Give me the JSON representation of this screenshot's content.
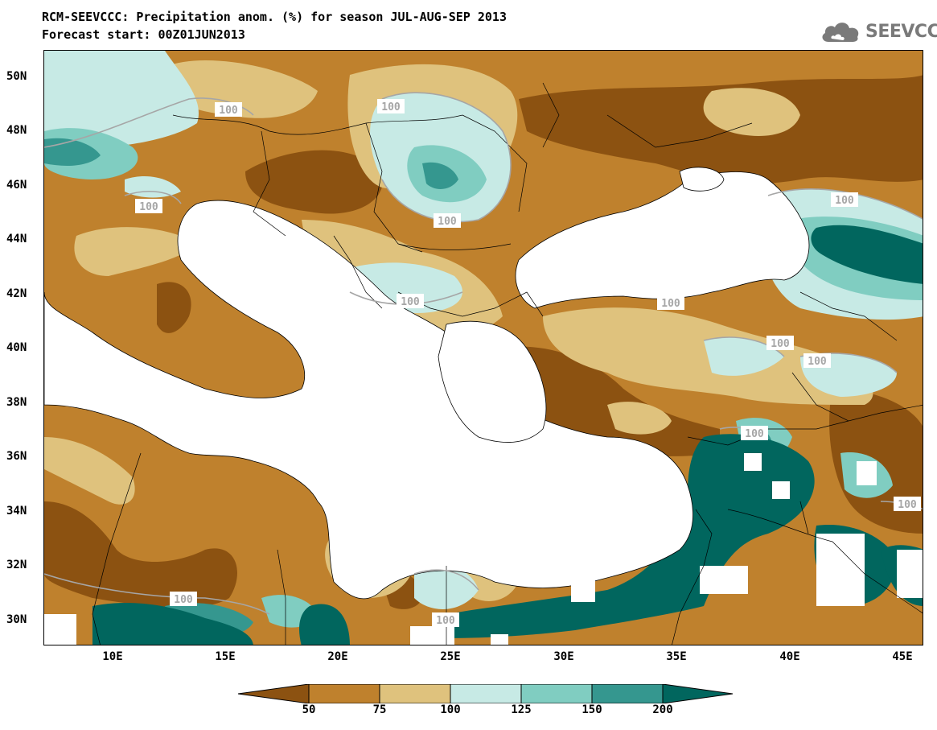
{
  "header": {
    "title_line1": "RCM-SEEVCCC: Precipitation anom. (%) for season JUL-AUG-SEP 2013",
    "title_line2": "Forecast start: 00Z01JUN2013",
    "logo_text": "SEEVCCC"
  },
  "map": {
    "lat_labels": [
      "50N",
      "48N",
      "46N",
      "44N",
      "42N",
      "40N",
      "38N",
      "36N",
      "34N",
      "32N",
      "30N"
    ],
    "lon_labels": [
      "10E",
      "15E",
      "20E",
      "25E",
      "30E",
      "35E",
      "40E",
      "45E"
    ],
    "contour_labels": [
      "100",
      "100",
      "100",
      "100",
      "100",
      "100",
      "100",
      "100",
      "100",
      "100",
      "100",
      "100",
      "100"
    ],
    "colors": {
      "dry_strong": "#8c5211",
      "dry": "#bf812d",
      "dry_light": "#dfc27d",
      "wet_light": "#c7eae5",
      "wet": "#80cdc1",
      "wet_mid": "#35978f",
      "wet_strong": "#01665e",
      "sea": "#ffffff"
    }
  },
  "legend": {
    "labels": [
      "50",
      "75",
      "100",
      "125",
      "150",
      "200"
    ],
    "colors": [
      "#8c5211",
      "#bf812d",
      "#dfc27d",
      "#c7eae5",
      "#80cdc1",
      "#35978f",
      "#01665e"
    ]
  }
}
